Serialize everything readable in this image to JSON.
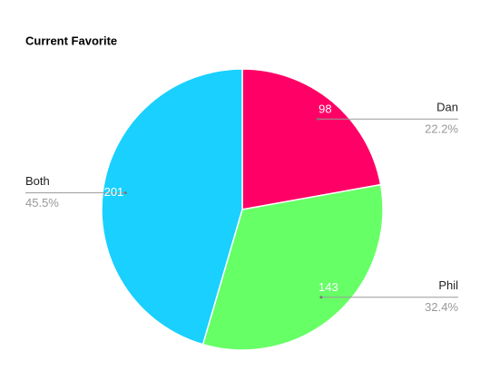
{
  "chart_data": {
    "type": "pie",
    "title": "Current Favorite",
    "categories": [
      "Dan",
      "Phil",
      "Both"
    ],
    "values": [
      98,
      143,
      201
    ],
    "percent_labels": [
      "22.2%",
      "32.4%",
      "45.5%"
    ],
    "colors": [
      "#ff0066",
      "#66ff66",
      "#19d0ff"
    ]
  }
}
